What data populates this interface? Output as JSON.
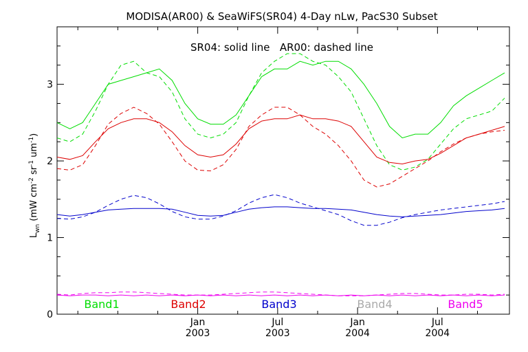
{
  "chart_data": {
    "type": "line",
    "title": "MODISA(AR00) & SeaWiFS(SR04) 4-Day nLw, PacS30 Subset",
    "annotation": "SR04: solid line   AR00: dashed line",
    "ylabel": {
      "main": "L",
      "sub": "wn",
      "unit_pre": " (mW cm",
      "unit_post": " um"
    },
    "ylim": [
      0,
      3.75
    ],
    "yticks": [
      {
        "value": 0,
        "label": "0"
      },
      {
        "value": 1,
        "label": "1"
      },
      {
        "value": 2,
        "label": "2"
      },
      {
        "value": 3,
        "label": "3"
      }
    ],
    "xlim": [
      2002.12,
      2004.95
    ],
    "xticks": [
      {
        "value": 2003.0,
        "label1": "Jan",
        "label2": "2003"
      },
      {
        "value": 2003.5,
        "label1": "Jul",
        "label2": "2003"
      },
      {
        "value": 2004.0,
        "label1": "Jan",
        "label2": "2004"
      },
      {
        "value": 2004.5,
        "label1": "Jul",
        "label2": "2004"
      }
    ],
    "minor_xticks": [
      2002.25,
      2002.5,
      2002.75,
      2003.25,
      2003.75,
      2004.25,
      2004.75
    ],
    "grid": false,
    "legend_position": "bottom",
    "series": [
      {
        "name": "Band1",
        "color": "#00dd00",
        "solid": {
          "x": [
            2002.12,
            2002.2,
            2002.28,
            2002.36,
            2002.44,
            2002.52,
            2002.6,
            2002.68,
            2002.76,
            2002.84,
            2002.92,
            2003.0,
            2003.08,
            2003.16,
            2003.24,
            2003.32,
            2003.4,
            2003.48,
            2003.56,
            2003.64,
            2003.72,
            2003.8,
            2003.88,
            2003.96,
            2004.04,
            2004.12,
            2004.2,
            2004.28,
            2004.36,
            2004.44,
            2004.52,
            2004.6,
            2004.68,
            2004.76,
            2004.84,
            2004.92
          ],
          "y": [
            2.5,
            2.42,
            2.5,
            2.75,
            3.0,
            3.05,
            3.1,
            3.15,
            3.2,
            3.05,
            2.75,
            2.55,
            2.48,
            2.48,
            2.6,
            2.85,
            3.1,
            3.2,
            3.2,
            3.3,
            3.25,
            3.3,
            3.3,
            3.2,
            3.0,
            2.75,
            2.45,
            2.3,
            2.35,
            2.35,
            2.5,
            2.72,
            2.85,
            2.95,
            3.05,
            3.15
          ]
        },
        "dashed": {
          "x": [
            2002.12,
            2002.2,
            2002.28,
            2002.36,
            2002.44,
            2002.52,
            2002.6,
            2002.68,
            2002.76,
            2002.84,
            2002.92,
            2003.0,
            2003.08,
            2003.16,
            2003.24,
            2003.32,
            2003.4,
            2003.48,
            2003.56,
            2003.64,
            2003.72,
            2003.8,
            2003.88,
            2003.96,
            2004.04,
            2004.12,
            2004.2,
            2004.28,
            2004.36,
            2004.44,
            2004.52,
            2004.6,
            2004.68,
            2004.76,
            2004.84,
            2004.92
          ],
          "y": [
            2.3,
            2.25,
            2.35,
            2.65,
            3.0,
            3.25,
            3.3,
            3.15,
            3.1,
            2.9,
            2.55,
            2.35,
            2.3,
            2.35,
            2.5,
            2.85,
            3.15,
            3.3,
            3.4,
            3.4,
            3.3,
            3.25,
            3.1,
            2.9,
            2.55,
            2.2,
            1.95,
            1.88,
            1.92,
            2.02,
            2.22,
            2.42,
            2.55,
            2.6,
            2.65,
            2.82
          ]
        }
      },
      {
        "name": "Band2",
        "color": "#dd0000",
        "solid": {
          "x": [
            2002.12,
            2002.2,
            2002.28,
            2002.36,
            2002.44,
            2002.52,
            2002.6,
            2002.68,
            2002.76,
            2002.84,
            2002.92,
            2003.0,
            2003.08,
            2003.16,
            2003.24,
            2003.32,
            2003.4,
            2003.48,
            2003.56,
            2003.64,
            2003.72,
            2003.8,
            2003.88,
            2003.96,
            2004.04,
            2004.12,
            2004.2,
            2004.28,
            2004.36,
            2004.44,
            2004.52,
            2004.6,
            2004.68,
            2004.76,
            2004.84,
            2004.92
          ],
          "y": [
            2.05,
            2.02,
            2.07,
            2.25,
            2.42,
            2.5,
            2.55,
            2.55,
            2.5,
            2.38,
            2.2,
            2.08,
            2.05,
            2.08,
            2.22,
            2.42,
            2.52,
            2.55,
            2.55,
            2.6,
            2.55,
            2.55,
            2.52,
            2.45,
            2.25,
            2.05,
            1.98,
            1.96,
            2.0,
            2.02,
            2.1,
            2.2,
            2.3,
            2.35,
            2.4,
            2.45
          ]
        },
        "dashed": {
          "x": [
            2002.12,
            2002.2,
            2002.28,
            2002.36,
            2002.44,
            2002.52,
            2002.6,
            2002.68,
            2002.76,
            2002.84,
            2002.92,
            2003.0,
            2003.08,
            2003.16,
            2003.24,
            2003.32,
            2003.4,
            2003.48,
            2003.56,
            2003.64,
            2003.72,
            2003.8,
            2003.88,
            2003.96,
            2004.04,
            2004.12,
            2004.2,
            2004.28,
            2004.36,
            2004.44,
            2004.52,
            2004.6,
            2004.68,
            2004.76,
            2004.84,
            2004.92
          ],
          "y": [
            1.9,
            1.88,
            1.95,
            2.2,
            2.48,
            2.62,
            2.7,
            2.62,
            2.48,
            2.25,
            2.0,
            1.88,
            1.87,
            1.95,
            2.15,
            2.45,
            2.6,
            2.7,
            2.7,
            2.6,
            2.45,
            2.35,
            2.2,
            2.0,
            1.75,
            1.66,
            1.7,
            1.8,
            1.9,
            2.0,
            2.12,
            2.22,
            2.3,
            2.35,
            2.38,
            2.4
          ]
        }
      },
      {
        "name": "Band3",
        "color": "#0000cc",
        "solid": {
          "x": [
            2002.12,
            2002.2,
            2002.28,
            2002.36,
            2002.44,
            2002.52,
            2002.6,
            2002.68,
            2002.76,
            2002.84,
            2002.92,
            2003.0,
            2003.08,
            2003.16,
            2003.24,
            2003.32,
            2003.4,
            2003.48,
            2003.56,
            2003.64,
            2003.72,
            2003.8,
            2003.88,
            2003.96,
            2004.04,
            2004.12,
            2004.2,
            2004.28,
            2004.36,
            2004.44,
            2004.52,
            2004.6,
            2004.68,
            2004.76,
            2004.84,
            2004.92
          ],
          "y": [
            1.3,
            1.28,
            1.3,
            1.33,
            1.36,
            1.37,
            1.38,
            1.38,
            1.38,
            1.37,
            1.33,
            1.29,
            1.28,
            1.29,
            1.33,
            1.37,
            1.39,
            1.4,
            1.4,
            1.39,
            1.38,
            1.38,
            1.37,
            1.36,
            1.33,
            1.3,
            1.28,
            1.27,
            1.28,
            1.29,
            1.3,
            1.32,
            1.34,
            1.35,
            1.36,
            1.38
          ]
        },
        "dashed": {
          "x": [
            2002.12,
            2002.2,
            2002.28,
            2002.36,
            2002.44,
            2002.52,
            2002.6,
            2002.68,
            2002.76,
            2002.84,
            2002.92,
            2003.0,
            2003.08,
            2003.16,
            2003.24,
            2003.32,
            2003.4,
            2003.48,
            2003.56,
            2003.64,
            2003.72,
            2003.8,
            2003.88,
            2003.96,
            2004.04,
            2004.12,
            2004.2,
            2004.28,
            2004.36,
            2004.44,
            2004.52,
            2004.6,
            2004.68,
            2004.76,
            2004.84,
            2004.92
          ],
          "y": [
            1.25,
            1.24,
            1.27,
            1.33,
            1.42,
            1.5,
            1.55,
            1.52,
            1.44,
            1.34,
            1.27,
            1.24,
            1.24,
            1.28,
            1.35,
            1.45,
            1.52,
            1.56,
            1.52,
            1.45,
            1.4,
            1.35,
            1.3,
            1.22,
            1.16,
            1.16,
            1.2,
            1.26,
            1.3,
            1.33,
            1.36,
            1.38,
            1.4,
            1.42,
            1.44,
            1.47
          ]
        }
      },
      {
        "name": "Band4",
        "color": "#aaaaaa",
        "solid": {
          "x": [],
          "y": []
        },
        "dashed": {
          "x": [],
          "y": []
        }
      },
      {
        "name": "Band5",
        "color": "#ee00ee",
        "solid": {
          "x": [
            2002.12,
            2002.2,
            2002.28,
            2002.36,
            2002.44,
            2002.52,
            2002.6,
            2002.68,
            2002.76,
            2002.84,
            2002.92,
            2003.0,
            2003.08,
            2003.16,
            2003.24,
            2003.32,
            2003.4,
            2003.48,
            2003.56,
            2003.64,
            2003.72,
            2003.8,
            2003.88,
            2003.96,
            2004.04,
            2004.12,
            2004.2,
            2004.28,
            2004.36,
            2004.44,
            2004.52,
            2004.6,
            2004.68,
            2004.76,
            2004.84,
            2004.92
          ],
          "y": [
            0.25,
            0.24,
            0.25,
            0.25,
            0.24,
            0.25,
            0.24,
            0.25,
            0.24,
            0.25,
            0.24,
            0.25,
            0.24,
            0.25,
            0.24,
            0.25,
            0.24,
            0.25,
            0.24,
            0.25,
            0.24,
            0.25,
            0.24,
            0.25,
            0.24,
            0.25,
            0.24,
            0.25,
            0.24,
            0.25,
            0.24,
            0.25,
            0.24,
            0.25,
            0.24,
            0.25
          ]
        },
        "dashed": {
          "x": [
            2002.12,
            2002.2,
            2002.28,
            2002.36,
            2002.44,
            2002.52,
            2002.6,
            2002.68,
            2002.76,
            2002.84,
            2002.92,
            2003.0,
            2003.08,
            2003.16,
            2003.24,
            2003.32,
            2003.4,
            2003.48,
            2003.56,
            2003.64,
            2003.72,
            2003.8,
            2003.88,
            2003.96,
            2004.04,
            2004.12,
            2004.2,
            2004.28,
            2004.36,
            2004.44,
            2004.52,
            2004.6,
            2004.68,
            2004.76,
            2004.84,
            2004.92
          ],
          "y": [
            0.26,
            0.25,
            0.27,
            0.28,
            0.28,
            0.29,
            0.29,
            0.28,
            0.27,
            0.26,
            0.25,
            0.25,
            0.25,
            0.26,
            0.27,
            0.28,
            0.29,
            0.29,
            0.28,
            0.27,
            0.26,
            0.25,
            0.24,
            0.24,
            0.24,
            0.25,
            0.26,
            0.27,
            0.27,
            0.26,
            0.25,
            0.25,
            0.26,
            0.26,
            0.25,
            0.26
          ]
        }
      }
    ]
  }
}
